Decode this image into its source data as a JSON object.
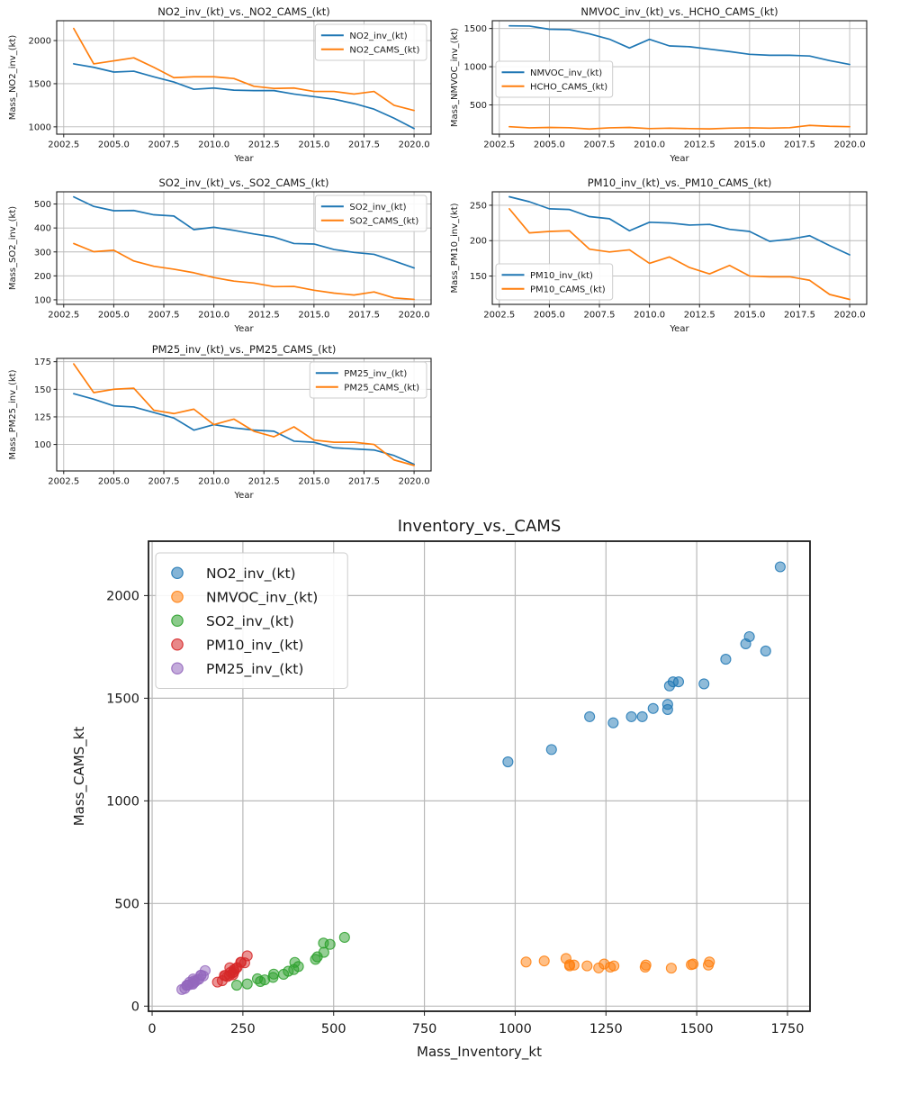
{
  "figure": {
    "background": "#ffffff"
  },
  "chart_data": [
    {
      "name": "no2-comparison",
      "type": "line",
      "title": "NO2_inv_(kt)_vs._NO2_CAMS_(kt)",
      "xlabel": "Year",
      "ylabel": "Mass_NO2_inv_(kt)",
      "x": [
        2003,
        2004,
        2005,
        2006,
        2007,
        2008,
        2009,
        2010,
        2011,
        2012,
        2013,
        2014,
        2015,
        2016,
        2017,
        2018,
        2019,
        2020
      ],
      "series": [
        {
          "name": "NO2_inv_(kt)",
          "color": "#1f77b4",
          "values": [
            1730,
            1690,
            1635,
            1645,
            1580,
            1520,
            1435,
            1450,
            1425,
            1420,
            1420,
            1380,
            1350,
            1320,
            1270,
            1205,
            1100,
            980
          ]
        },
        {
          "name": "NO2_CAMS_(kt)",
          "color": "#ff7f0e",
          "values": [
            2140,
            1730,
            1765,
            1800,
            1690,
            1570,
            1580,
            1580,
            1560,
            1470,
            1445,
            1450,
            1410,
            1410,
            1380,
            1410,
            1250,
            1190
          ]
        }
      ],
      "xlim": [
        2002.15,
        2020.85
      ],
      "ylim": [
        915,
        2230
      ],
      "xticks": [
        2002.5,
        2005,
        2007.5,
        2010,
        2012.5,
        2015,
        2017.5,
        2020
      ],
      "xtick_labels": [
        "2002.5",
        "2005.0",
        "2007.5",
        "2010.0",
        "2012.5",
        "2015.0",
        "2017.5",
        "2020.0"
      ],
      "yticks": [
        1000,
        1500,
        2000
      ],
      "ytick_labels": [
        "1000",
        "1500",
        "2000"
      ],
      "grid": true,
      "legend_pos": "upper-right"
    },
    {
      "name": "nmvoc-comparison",
      "type": "line",
      "title": "NMVOC_inv_(kt)_vs._HCHO_CAMS_(kt)",
      "xlabel": "Year",
      "ylabel": "Mass_NMVOC_inv_(kt)",
      "x": [
        2003,
        2004,
        2005,
        2006,
        2007,
        2008,
        2009,
        2010,
        2011,
        2012,
        2013,
        2014,
        2015,
        2016,
        2017,
        2018,
        2019,
        2020
      ],
      "series": [
        {
          "name": "NMVOC_inv_(kt)",
          "color": "#1f77b4",
          "values": [
            1535,
            1532,
            1490,
            1485,
            1430,
            1360,
            1245,
            1358,
            1272,
            1262,
            1230,
            1198,
            1162,
            1150,
            1150,
            1140,
            1080,
            1030
          ]
        },
        {
          "name": "HCHO_CAMS_(kt)",
          "color": "#ff7f0e",
          "values": [
            215,
            200,
            205,
            202,
            185,
            200,
            205,
            190,
            196,
            190,
            186,
            196,
            200,
            196,
            202,
            232,
            220,
            215
          ]
        }
      ],
      "xlim": [
        2002.15,
        2020.85
      ],
      "ylim": [
        117,
        1602
      ],
      "xticks": [
        2002.5,
        2005,
        2007.5,
        2010,
        2012.5,
        2015,
        2017.5,
        2020
      ],
      "xtick_labels": [
        "2002.5",
        "2005.0",
        "2007.5",
        "2010.0",
        "2012.5",
        "2015.0",
        "2017.5",
        "2020.0"
      ],
      "yticks": [
        500,
        1000,
        1500
      ],
      "ytick_labels": [
        "500",
        "1000",
        "1500"
      ],
      "grid": true,
      "legend_pos": "center-left"
    },
    {
      "name": "so2-comparison",
      "type": "line",
      "title": "SO2_inv_(kt)_vs._SO2_CAMS_(kt)",
      "xlabel": "Year",
      "ylabel": "Mass_SO2_inv_(kt)",
      "x": [
        2003,
        2004,
        2005,
        2006,
        2007,
        2008,
        2009,
        2010,
        2011,
        2012,
        2013,
        2014,
        2015,
        2016,
        2017,
        2018,
        2019,
        2020
      ],
      "series": [
        {
          "name": "SO2_inv_(kt)",
          "color": "#1f77b4",
          "values": [
            530,
            490,
            472,
            473,
            455,
            450,
            393,
            403,
            390,
            375,
            362,
            335,
            333,
            310,
            298,
            290,
            262,
            233
          ]
        },
        {
          "name": "SO2_CAMS_(kt)",
          "color": "#ff7f0e",
          "values": [
            335,
            301,
            307,
            262,
            240,
            228,
            213,
            193,
            178,
            170,
            155,
            156,
            140,
            128,
            120,
            133,
            108,
            102
          ]
        }
      ],
      "xlim": [
        2002.15,
        2020.85
      ],
      "ylim": [
        81,
        551
      ],
      "xticks": [
        2002.5,
        2005,
        2007.5,
        2010,
        2012.5,
        2015,
        2017.5,
        2020
      ],
      "xtick_labels": [
        "2002.5",
        "2005.0",
        "2007.5",
        "2010.0",
        "2012.5",
        "2015.0",
        "2017.5",
        "2020.0"
      ],
      "yticks": [
        100,
        200,
        300,
        400,
        500
      ],
      "ytick_labels": [
        "100",
        "200",
        "300",
        "400",
        "500"
      ],
      "grid": true,
      "legend_pos": "upper-right"
    },
    {
      "name": "pm10-comparison",
      "type": "line",
      "title": "PM10_inv_(kt)_vs._PM10_CAMS_(kt)",
      "xlabel": "Year",
      "ylabel": "Mass_PM10_inv_(kt)",
      "x": [
        2003,
        2004,
        2005,
        2006,
        2007,
        2008,
        2009,
        2010,
        2011,
        2012,
        2013,
        2014,
        2015,
        2016,
        2017,
        2018,
        2019,
        2020
      ],
      "series": [
        {
          "name": "PM10_inv_(kt)",
          "color": "#1f77b4",
          "values": [
            262,
            255,
            245,
            244,
            234,
            231,
            214,
            226,
            225,
            222,
            223,
            216,
            213,
            199,
            202,
            207,
            193,
            180
          ]
        },
        {
          "name": "PM10_CAMS_(kt)",
          "color": "#ff7f0e",
          "values": [
            245,
            211,
            213,
            214,
            188,
            184,
            187,
            168,
            177,
            162,
            153,
            165,
            150,
            149,
            149,
            144,
            124,
            117
          ]
        }
      ],
      "xlim": [
        2002.15,
        2020.85
      ],
      "ylim": [
        110,
        269
      ],
      "xticks": [
        2002.5,
        2005,
        2007.5,
        2010,
        2012.5,
        2015,
        2017.5,
        2020
      ],
      "xtick_labels": [
        "2002.5",
        "2005.0",
        "2007.5",
        "2010.0",
        "2012.5",
        "2015.0",
        "2017.5",
        "2020.0"
      ],
      "yticks": [
        150,
        200,
        250
      ],
      "ytick_labels": [
        "150",
        "200",
        "250"
      ],
      "grid": true,
      "legend_pos": "lower-left"
    },
    {
      "name": "pm25-comparison",
      "type": "line",
      "title": "PM25_inv_(kt)_vs._PM25_CAMS_(kt)",
      "xlabel": "Year",
      "ylabel": "Mass_PM25_inv_(kt)",
      "x": [
        2003,
        2004,
        2005,
        2006,
        2007,
        2008,
        2009,
        2010,
        2011,
        2012,
        2013,
        2014,
        2015,
        2016,
        2017,
        2018,
        2019,
        2020
      ],
      "series": [
        {
          "name": "PM25_inv_(kt)",
          "color": "#1f77b4",
          "values": [
            146,
            141,
            135,
            134,
            129,
            124,
            113,
            118,
            115,
            113,
            112,
            103,
            102,
            97,
            96,
            95,
            90,
            82
          ]
        },
        {
          "name": "PM25_CAMS_(kt)",
          "color": "#ff7f0e",
          "values": [
            173,
            147,
            150,
            151,
            131,
            128,
            132,
            118,
            123,
            112,
            107,
            116,
            104,
            102,
            102,
            100,
            86,
            81
          ]
        }
      ],
      "xlim": [
        2002.15,
        2020.85
      ],
      "ylim": [
        76,
        178
      ],
      "xticks": [
        2002.5,
        2005,
        2007.5,
        2010,
        2012.5,
        2015,
        2017.5,
        2020
      ],
      "xtick_labels": [
        "2002.5",
        "2005.0",
        "2007.5",
        "2010.0",
        "2012.5",
        "2015.0",
        "2017.5",
        "2020.0"
      ],
      "yticks": [
        100,
        125,
        150,
        175
      ],
      "ytick_labels": [
        "100",
        "125",
        "150",
        "175"
      ],
      "grid": true,
      "legend_pos": "upper-right"
    },
    {
      "name": "inventory-vs-cams-scatter",
      "type": "scatter",
      "title": "Inventory_vs._CAMS",
      "xlabel": "Mass_Inventory_kt",
      "ylabel": "Mass_CAMS_kt",
      "series": [
        {
          "name": "NO2_inv_(kt)",
          "color": "#1f77b4",
          "x": [
            1730,
            1690,
            1635,
            1645,
            1580,
            1520,
            1435,
            1450,
            1425,
            1420,
            1420,
            1380,
            1350,
            1320,
            1270,
            1205,
            1100,
            980
          ],
          "y": [
            2140,
            1730,
            1765,
            1800,
            1690,
            1570,
            1580,
            1580,
            1560,
            1470,
            1445,
            1450,
            1410,
            1410,
            1380,
            1410,
            1250,
            1190
          ]
        },
        {
          "name": "NMVOC_inv_(kt)",
          "color": "#ff7f0e",
          "x": [
            1535,
            1532,
            1490,
            1485,
            1430,
            1360,
            1245,
            1358,
            1272,
            1262,
            1230,
            1198,
            1162,
            1150,
            1150,
            1140,
            1080,
            1030
          ],
          "y": [
            215,
            200,
            205,
            202,
            185,
            200,
            205,
            190,
            196,
            190,
            186,
            196,
            200,
            196,
            202,
            232,
            220,
            215
          ]
        },
        {
          "name": "SO2_inv_(kt)",
          "color": "#2ca02c",
          "x": [
            530,
            490,
            472,
            473,
            455,
            450,
            393,
            403,
            390,
            375,
            362,
            335,
            333,
            310,
            298,
            290,
            262,
            233
          ],
          "y": [
            335,
            301,
            307,
            262,
            240,
            228,
            213,
            193,
            178,
            170,
            155,
            156,
            140,
            128,
            120,
            133,
            108,
            102
          ]
        },
        {
          "name": "PM10_inv_(kt)",
          "color": "#d62728",
          "x": [
            262,
            255,
            245,
            244,
            234,
            231,
            214,
            226,
            225,
            222,
            223,
            216,
            213,
            199,
            202,
            207,
            193,
            180
          ],
          "y": [
            245,
            211,
            213,
            214,
            188,
            184,
            187,
            168,
            177,
            162,
            153,
            165,
            150,
            149,
            149,
            144,
            124,
            117
          ]
        },
        {
          "name": "PM25_inv_(kt)",
          "color": "#9467bd",
          "x": [
            146,
            141,
            135,
            134,
            129,
            124,
            113,
            118,
            115,
            113,
            112,
            103,
            102,
            97,
            96,
            95,
            90,
            82
          ],
          "y": [
            173,
            147,
            150,
            151,
            131,
            128,
            132,
            118,
            123,
            112,
            107,
            116,
            104,
            102,
            102,
            100,
            86,
            81
          ]
        }
      ],
      "xlim": [
        -10,
        1812
      ],
      "ylim": [
        -25,
        2265
      ],
      "xticks": [
        0,
        250,
        500,
        750,
        1000,
        1250,
        1500,
        1750
      ],
      "xtick_labels": [
        "0",
        "250",
        "500",
        "750",
        "1000",
        "1250",
        "1500",
        "1750"
      ],
      "yticks": [
        0,
        500,
        1000,
        1500,
        2000
      ],
      "ytick_labels": [
        "0",
        "500",
        "1000",
        "1500",
        "2000"
      ],
      "grid": true,
      "legend_pos": "upper-left",
      "marker": {
        "diameter": 11,
        "alpha": 0.5
      }
    }
  ]
}
